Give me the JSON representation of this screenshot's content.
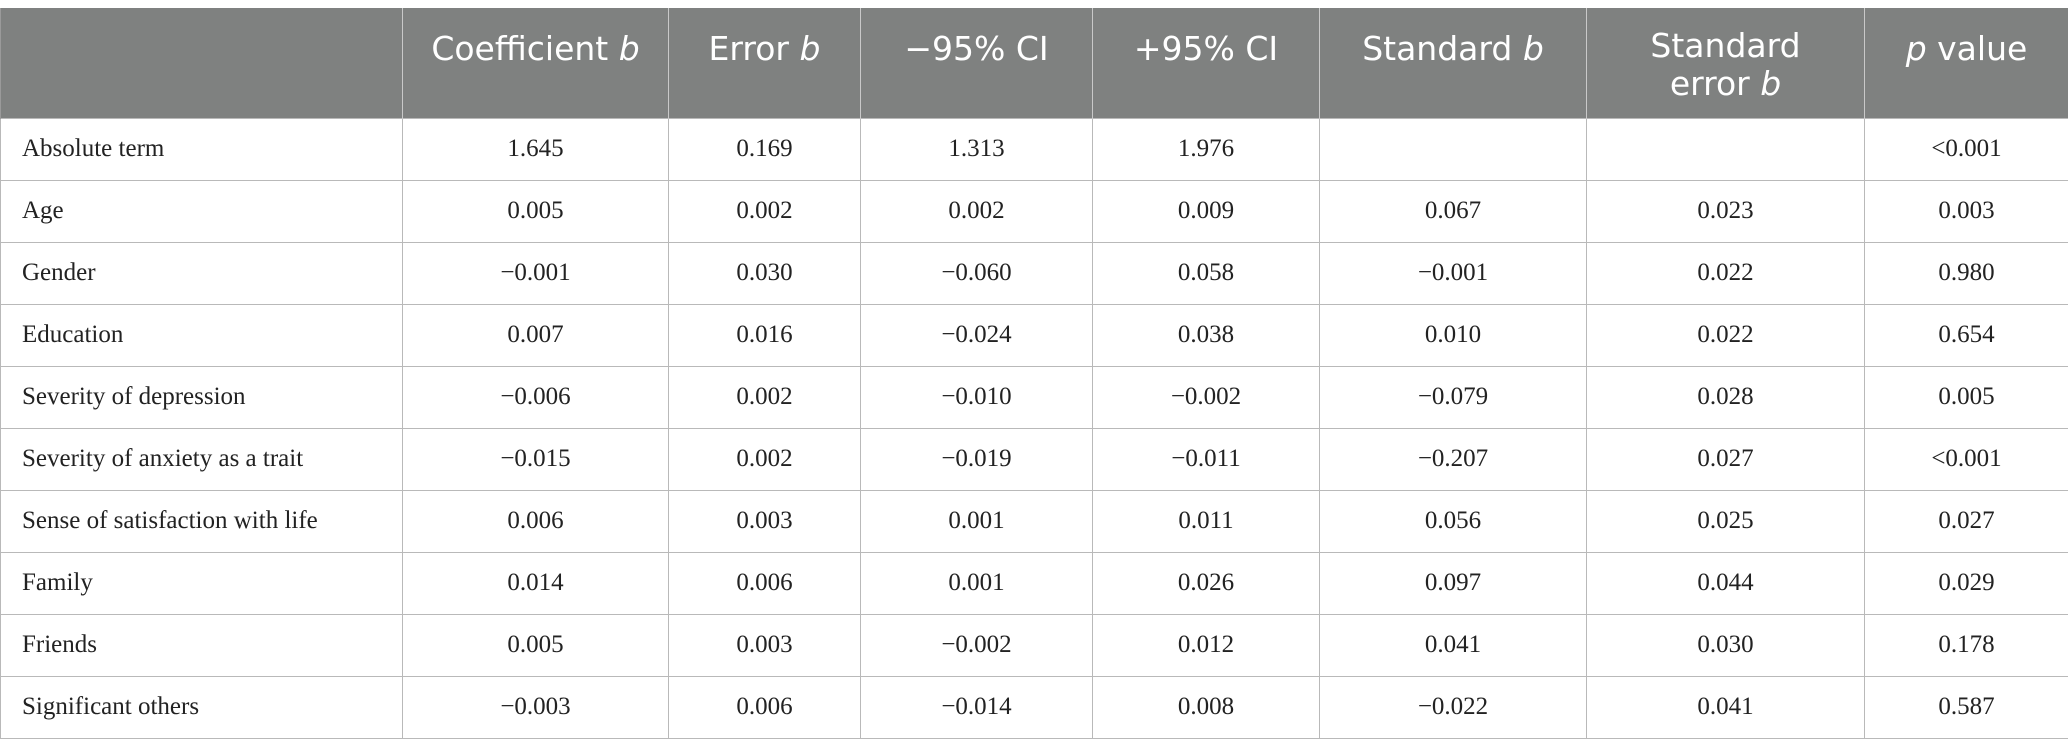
{
  "table": {
    "header": {
      "col0": "",
      "col1_main": "Coefficient ",
      "col1_ital": "b",
      "col2_main": "Error ",
      "col2_ital": "b",
      "col3": "−95% CI",
      "col4": "+95% CI",
      "col5_main": "Standard ",
      "col5_ital": "b",
      "col6_line1": "Standard",
      "col6_line2": "error ",
      "col6_ital": "b",
      "col7_ital": "p",
      "col7_main": " value"
    },
    "rows": [
      {
        "label": "Absolute term",
        "coef": "1.645",
        "err": "0.169",
        "ci_low": "1.313",
        "ci_high": "1.976",
        "std_b": "",
        "std_err": "",
        "p": "<0.001"
      },
      {
        "label": "Age",
        "coef": "0.005",
        "err": "0.002",
        "ci_low": "0.002",
        "ci_high": "0.009",
        "std_b": "0.067",
        "std_err": "0.023",
        "p": "0.003"
      },
      {
        "label": "Gender",
        "coef": "−0.001",
        "err": "0.030",
        "ci_low": "−0.060",
        "ci_high": "0.058",
        "std_b": "−0.001",
        "std_err": "0.022",
        "p": "0.980"
      },
      {
        "label": "Education",
        "coef": "0.007",
        "err": "0.016",
        "ci_low": "−0.024",
        "ci_high": "0.038",
        "std_b": "0.010",
        "std_err": "0.022",
        "p": "0.654"
      },
      {
        "label": "Severity of depression",
        "coef": "−0.006",
        "err": "0.002",
        "ci_low": "−0.010",
        "ci_high": "−0.002",
        "std_b": "−0.079",
        "std_err": "0.028",
        "p": "0.005"
      },
      {
        "label": "Severity of anxiety as a trait",
        "coef": "−0.015",
        "err": "0.002",
        "ci_low": "−0.019",
        "ci_high": "−0.011",
        "std_b": "−0.207",
        "std_err": "0.027",
        "p": "<0.001"
      },
      {
        "label": "Sense of satisfaction with life",
        "coef": "0.006",
        "err": "0.003",
        "ci_low": "0.001",
        "ci_high": "0.011",
        "std_b": "0.056",
        "std_err": "0.025",
        "p": "0.027"
      },
      {
        "label": "Family",
        "coef": "0.014",
        "err": "0.006",
        "ci_low": "0.001",
        "ci_high": "0.026",
        "std_b": "0.097",
        "std_err": "0.044",
        "p": "0.029"
      },
      {
        "label": "Friends",
        "coef": "0.005",
        "err": "0.003",
        "ci_low": "−0.002",
        "ci_high": "0.012",
        "std_b": "0.041",
        "std_err": "0.030",
        "p": "0.178"
      },
      {
        "label": "Significant others",
        "coef": "−0.003",
        "err": "0.006",
        "ci_low": "−0.014",
        "ci_high": "0.008",
        "std_b": "−0.022",
        "std_err": "0.041",
        "p": "0.587"
      }
    ]
  }
}
